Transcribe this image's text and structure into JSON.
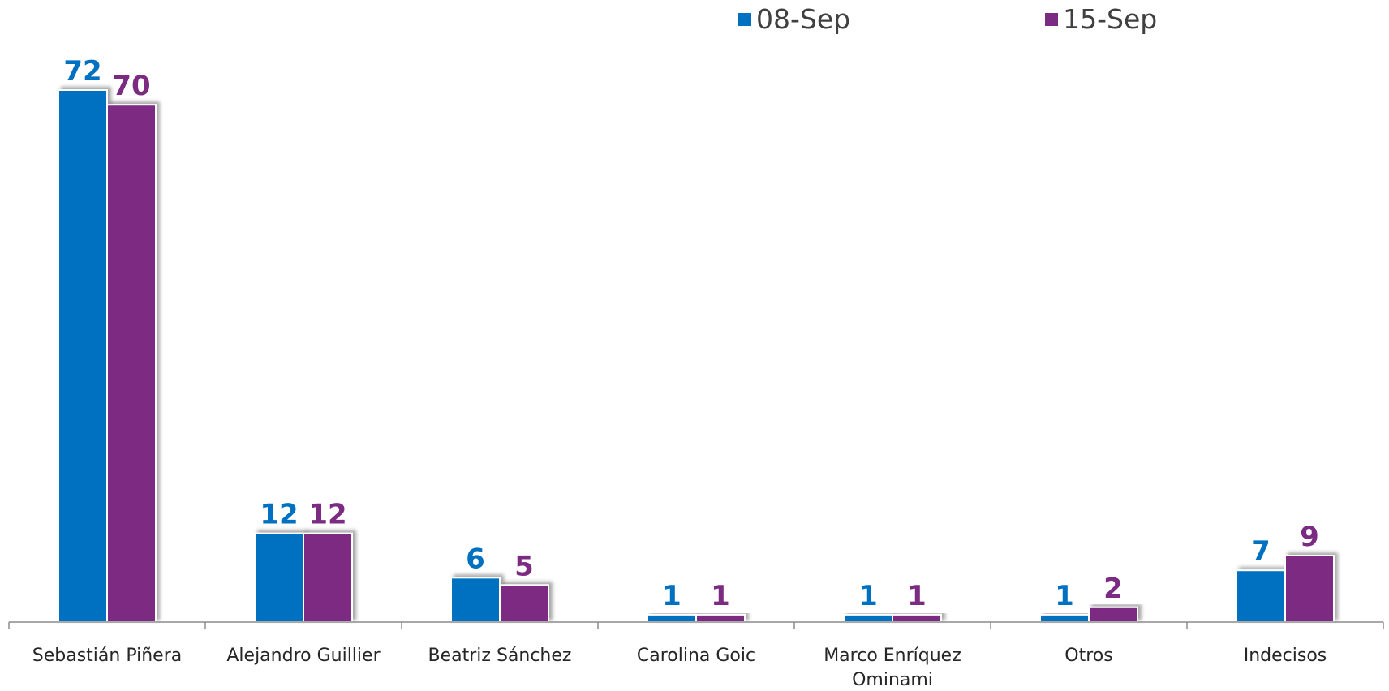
{
  "chart_data": {
    "type": "bar",
    "categories": [
      [
        "Sebastián Piñera"
      ],
      [
        "Alejandro Guillier"
      ],
      [
        "Beatriz Sánchez"
      ],
      [
        "Carolina Goic"
      ],
      [
        "Marco Enríquez",
        "Ominami"
      ],
      [
        "Otros"
      ],
      [
        "Indecisos"
      ]
    ],
    "series": [
      {
        "name": "08-Sep",
        "color": "#0070C0",
        "values": [
          72,
          12,
          6,
          1,
          1,
          1,
          7
        ]
      },
      {
        "name": "15-Sep",
        "color": "#7B2C82",
        "values": [
          70,
          12,
          5,
          1,
          1,
          2,
          9
        ]
      }
    ],
    "ylim": [
      0,
      75
    ],
    "grid": false,
    "legend_position": "top-right"
  }
}
